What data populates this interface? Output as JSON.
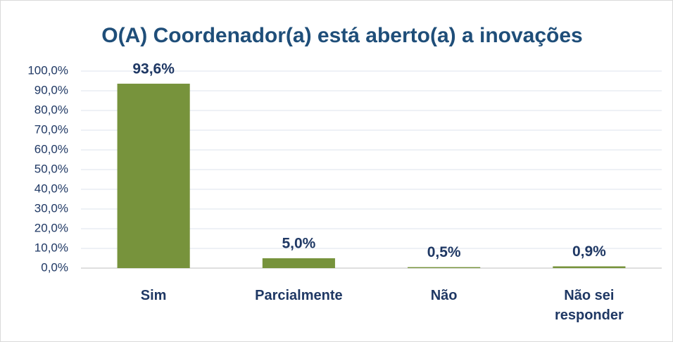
{
  "chart_data": {
    "type": "bar",
    "title": "O(A) Coordenador(a) está aberto(a) a inovações",
    "categories": [
      "Sim",
      "Parcialmente",
      "Não",
      "Não sei responder"
    ],
    "values": [
      93.6,
      5.0,
      0.5,
      0.9
    ],
    "value_labels": [
      "93,6%",
      "5,0%",
      "0,5%",
      "0,9%"
    ],
    "color": "#77933c",
    "ylim": [
      0,
      100
    ],
    "yticks": [
      {
        "value": 0,
        "label": "0,0%"
      },
      {
        "value": 10,
        "label": "10,0%"
      },
      {
        "value": 20,
        "label": "20,0%"
      },
      {
        "value": 30,
        "label": "30,0%"
      },
      {
        "value": 40,
        "label": "40,0%"
      },
      {
        "value": 50,
        "label": "50,0%"
      },
      {
        "value": 60,
        "label": "60,0%"
      },
      {
        "value": 70,
        "label": "70,0%"
      },
      {
        "value": 80,
        "label": "80,0%"
      },
      {
        "value": 90,
        "label": "90,0%"
      },
      {
        "value": 100,
        "label": "100,0%"
      }
    ],
    "grid": true
  }
}
